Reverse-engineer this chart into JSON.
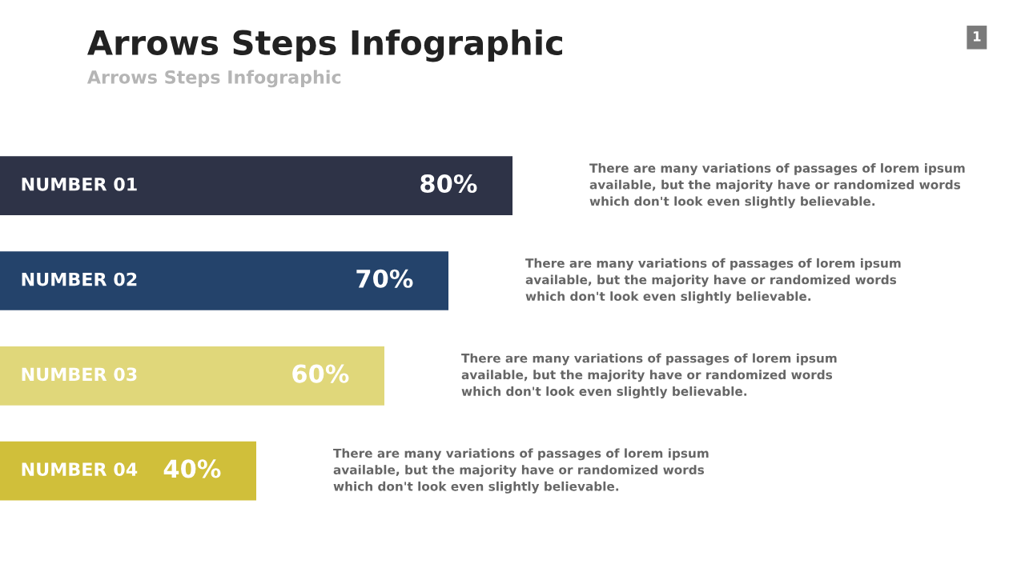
{
  "chart_data": {
    "type": "bar",
    "orientation": "horizontal",
    "title": "Arrows Steps Infographic",
    "subtitle": "Arrows Steps Infographic",
    "categories": [
      "NUMBER 01",
      "NUMBER 02",
      "NUMBER 03",
      "NUMBER 04"
    ],
    "values": [
      80,
      70,
      60,
      40
    ],
    "colors": [
      "#2e3347",
      "#24436b",
      "#e0d77a",
      "#d0bf3a"
    ],
    "value_labels": [
      "80%",
      "70%",
      "60%",
      "40%"
    ],
    "annotations": [
      "There are many variations of passages of lorem ipsum\navailable, but the majority have or randomized words\nwhich don't look even slightly believable.",
      "There are many variations of passages of lorem ipsum\navailable, but the majority have or randomized words\nwhich don't look even slightly believable.",
      "There are many variations of passages of lorem ipsum\navailable, but the majority have or randomized words\nwhich don't look even slightly believable.",
      "There are many variations of passages of lorem ipsum\navailable, but the majority have or randomized words\nwhich don't look even slightly believable.",
      "1"
    ]
  }
}
